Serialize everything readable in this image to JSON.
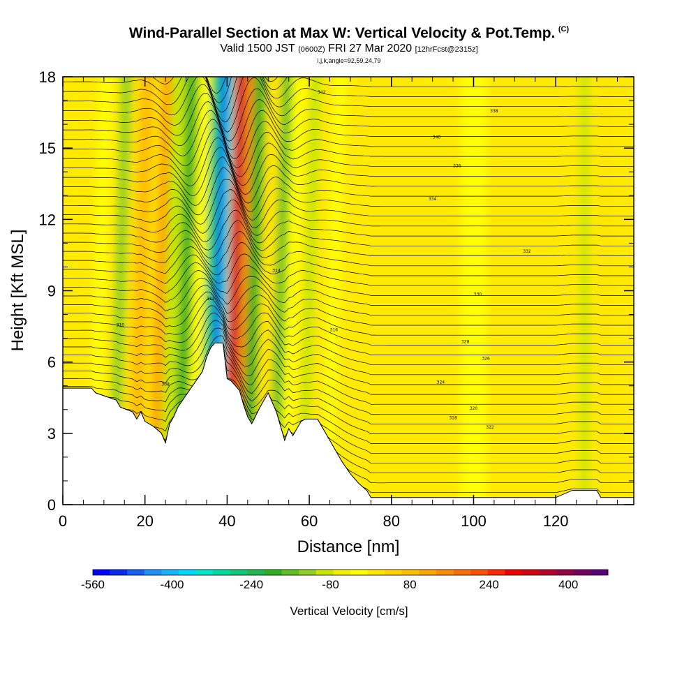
{
  "header": {
    "title": "Wind-Parallel Section at Max W: Vertical Velocity & Pot.Temp.",
    "copyright": "(C)",
    "valid_prefix": "Valid 1500 JST",
    "valid_utc": "(0600Z)",
    "valid_date": "FRI 27 Mar 2020",
    "forecast": "[12hrFcst@2315z]",
    "indices": "i,j,k,angle=92,59,24,79"
  },
  "chart_data": {
    "type": "heatmap",
    "xlabel": "Distance [nm]",
    "ylabel": "Height [Kft MSL]",
    "xlim": [
      0,
      139
    ],
    "ylim": [
      0,
      18
    ],
    "x_ticks": [
      0,
      20,
      40,
      60,
      80,
      100,
      120
    ],
    "x_tick_labels": [
      "0",
      "20",
      "40",
      "60",
      "80",
      "100",
      "120"
    ],
    "y_ticks": [
      0,
      3,
      6,
      9,
      12,
      15,
      18
    ],
    "y_tick_labels": [
      "0",
      "3",
      "6",
      "9",
      "12",
      "15",
      "18"
    ],
    "terrain_kft": {
      "x": [
        0,
        7,
        8,
        13,
        14,
        17,
        18,
        19,
        20,
        22,
        24,
        25,
        26,
        27,
        28,
        30,
        32,
        34,
        35,
        36,
        37,
        38,
        39,
        40,
        41,
        42,
        43,
        44,
        45,
        46,
        48,
        50,
        52,
        54,
        55,
        56,
        57,
        58,
        59,
        60,
        61,
        62,
        63,
        64,
        65,
        66,
        67,
        68,
        70,
        72,
        74,
        75,
        76,
        80,
        90,
        100,
        110,
        120,
        124,
        125,
        130,
        131,
        135,
        139
      ],
      "y": [
        4.9,
        4.9,
        4.7,
        4.4,
        4.1,
        3.9,
        3.6,
        3.9,
        3.5,
        3.3,
        3.0,
        2.6,
        3.4,
        3.7,
        4.1,
        4.6,
        5.1,
        5.6,
        6.2,
        6.6,
        6.8,
        6.8,
        6.8,
        5.3,
        5.2,
        5.0,
        4.8,
        4.2,
        3.7,
        3.4,
        4.1,
        4.7,
        3.9,
        2.7,
        3.2,
        2.9,
        3.2,
        3.5,
        3.6,
        3.6,
        3.6,
        3.6,
        3.3,
        3.0,
        2.7,
        2.4,
        2.1,
        1.8,
        1.3,
        0.9,
        0.6,
        0.3,
        0.3,
        0.3,
        0.3,
        0.3,
        0.3,
        0.3,
        0.6,
        0.6,
        0.6,
        0.3,
        0.3,
        0.3
      ]
    },
    "vertical_velocity_bands": [
      {
        "x": 9,
        "width": 3.0,
        "value": 40
      },
      {
        "x": 14,
        "width": 2.5,
        "value": -80
      },
      {
        "x": 17,
        "width": 3.0,
        "value": 80
      },
      {
        "x": 19,
        "width": 3.5,
        "value": 160
      },
      {
        "x": 24,
        "width": 3.0,
        "value": 200
      },
      {
        "x": 27,
        "width": 4.0,
        "value": -40
      },
      {
        "x": 30,
        "width": 3.0,
        "value": -160
      },
      {
        "x": 33,
        "width": 3.0,
        "value": 40
      },
      {
        "x": 36,
        "width": 2.5,
        "value": -240
      },
      {
        "x": 38,
        "width": 2.0,
        "value": -480
      },
      {
        "x": 39.5,
        "width": 1.5,
        "value": -320
      },
      {
        "x": 41,
        "width": 1.5,
        "value": 360
      },
      {
        "x": 42.3,
        "width": 1.5,
        "value": 480
      },
      {
        "x": 44,
        "width": 2.0,
        "value": 240
      },
      {
        "x": 46.5,
        "width": 3.0,
        "value": -160
      },
      {
        "x": 50,
        "width": 3.5,
        "value": 80
      },
      {
        "x": 53,
        "width": 2.5,
        "value": -120
      },
      {
        "x": 56,
        "width": 3.0,
        "value": 40
      },
      {
        "x": 60,
        "width": 2.5,
        "value": -40
      },
      {
        "x": 66,
        "width": 3.0,
        "value": 40
      },
      {
        "x": 100,
        "width": 6.0,
        "value": 40
      },
      {
        "x": 127,
        "width": 2.0,
        "value": -40
      },
      {
        "x": 132,
        "width": 3.0,
        "value": 80
      }
    ],
    "theta_contour_labels": [
      "306",
      "308",
      "310",
      "312",
      "314",
      "316",
      "318",
      "320",
      "322",
      "324",
      "326",
      "328",
      "330",
      "332",
      "334",
      "336",
      "338",
      "340",
      "342"
    ],
    "colorbar": {
      "title": "Vertical Velocity [cm/s]",
      "min": -560,
      "max": 480,
      "step": 40,
      "tick_labels": [
        "-560",
        "-400",
        "-240",
        "-80",
        "80",
        "240",
        "400"
      ],
      "colors": [
        "#0000ff",
        "#0a2cf0",
        "#1460f5",
        "#1e90ff",
        "#16b4ff",
        "#00d8ff",
        "#00e6c8",
        "#00dca0",
        "#10c878",
        "#20b850",
        "#30b020",
        "#60c020",
        "#90d020",
        "#c8e600",
        "#f0f000",
        "#ffff00",
        "#ffe600",
        "#ffd200",
        "#ffbe00",
        "#ffa500",
        "#ff8c00",
        "#ff6e00",
        "#ff5000",
        "#ff2800",
        "#ee0000",
        "#d40014",
        "#b4002d",
        "#960046",
        "#780060",
        "#5a0078"
      ]
    }
  }
}
